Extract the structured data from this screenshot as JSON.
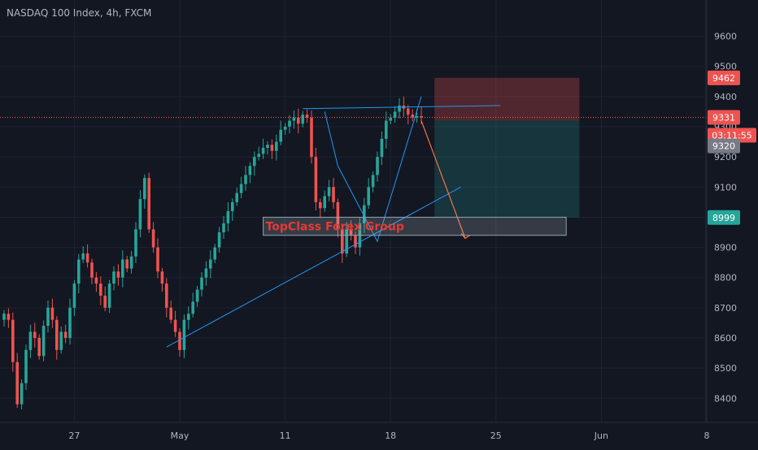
{
  "header": {
    "title": "NASDAQ 100 Index, 4h, FXCM"
  },
  "colors": {
    "background": "#131722",
    "grid": "#1f2331",
    "axis_text": "#b2b5be",
    "bull": "#26a69a",
    "bear": "#ef5350",
    "trendline": "#2196f3",
    "stop_zone": "#ef5350",
    "target_zone": "#26a69a",
    "box_label": "#e53935"
  },
  "chart_data": {
    "type": "candlestick",
    "title": "NASDAQ 100 Index, 4h, FXCM",
    "xlabel": "",
    "ylabel": "",
    "ylim": [
      8320,
      9720
    ],
    "grid": true,
    "yticks": [
      8400,
      8500,
      8600,
      8700,
      8800,
      8900,
      9000,
      9100,
      9200,
      9300,
      9400,
      9500,
      9600
    ],
    "xticks": [
      {
        "label": "27",
        "bar": 16
      },
      {
        "label": "May",
        "bar": 40
      },
      {
        "label": "11",
        "bar": 64
      },
      {
        "label": "18",
        "bar": 88
      },
      {
        "label": "25",
        "bar": 112
      },
      {
        "label": "Jun",
        "bar": 136
      },
      {
        "label": "8",
        "bar": 160
      }
    ],
    "series_close": [
      8680,
      8660,
      8520,
      8380,
      8450,
      8560,
      8620,
      8600,
      8540,
      8640,
      8700,
      8660,
      8560,
      8620,
      8600,
      8700,
      8780,
      8860,
      8880,
      8850,
      8800,
      8780,
      8740,
      8700,
      8780,
      8820,
      8800,
      8860,
      8830,
      8870,
      8960,
      9060,
      9130,
      8960,
      8900,
      8820,
      8780,
      8700,
      8660,
      8620,
      8560,
      8660,
      8680,
      8720,
      8760,
      8800,
      8830,
      8860,
      8900,
      8950,
      8980,
      9020,
      9050,
      9080,
      9110,
      9140,
      9170,
      9200,
      9210,
      9230,
      9240,
      9220,
      9250,
      9290,
      9300,
      9320,
      9330,
      9310,
      9340,
      9330,
      9200,
      9050,
      9030,
      9070,
      9100,
      9050,
      8960,
      8880,
      8960,
      8940,
      8900,
      8980,
      9040,
      9100,
      9140,
      9200,
      9260,
      9320,
      9330,
      9350,
      9370,
      9360,
      9340,
      9330,
      9335,
      9331
    ],
    "last_price": 9331,
    "countdown": "03:11:55",
    "bid_price": 9320,
    "annotations": {
      "stop_level": 9462,
      "target_level": 8999,
      "trendline_support": [
        {
          "bar": 37,
          "price": 8570
        },
        {
          "bar": 104,
          "price": 9100
        }
      ],
      "resistance_line": [
        {
          "bar": 68,
          "price": 9360
        },
        {
          "bar": 113,
          "price": 9370
        }
      ],
      "pattern_lines": [
        [
          {
            "bar": 73,
            "price": 9350
          },
          {
            "bar": 76,
            "price": 9170
          },
          {
            "bar": 85,
            "price": 8920
          },
          {
            "bar": 95,
            "price": 9400
          }
        ]
      ],
      "projection_arrow": [
        {
          "bar": 95,
          "price": 9320
        },
        {
          "bar": 105,
          "price": 8930
        }
      ],
      "risk_reward_box": {
        "start_bar": 98,
        "end_bar": 131,
        "entry": 9320,
        "stop": 9462,
        "target": 8999
      },
      "label_box": {
        "start_bar": 59,
        "end_bar": 128,
        "top": 9000,
        "bottom": 8940,
        "text": "TopClass Forex Group"
      }
    }
  }
}
